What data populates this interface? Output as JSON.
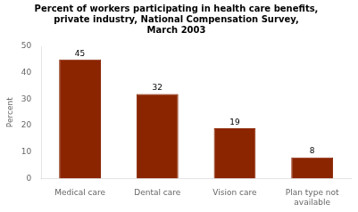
{
  "chart_data": {
    "type": "bar",
    "title": "Percent of workers participating in health care benefits,\nprivate industry, National Compensation Survey,\nMarch 2003",
    "categories": [
      "Medical care",
      "Dental care",
      "Vision care",
      "Plan type not\navailable"
    ],
    "values": [
      45,
      32,
      19,
      8
    ],
    "color": "#8B2500",
    "ylabel": "Percent",
    "ylim": [
      0,
      50
    ],
    "yticks": [
      0,
      10,
      20,
      30,
      40,
      50
    ],
    "grid": false,
    "data_labels": true
  }
}
